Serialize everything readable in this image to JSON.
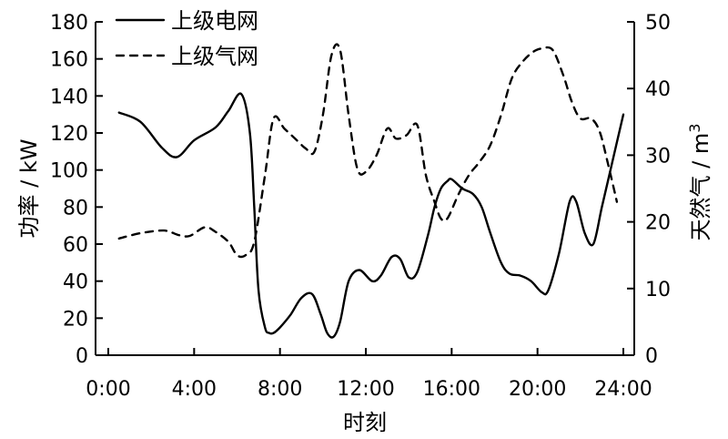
{
  "chart_data": {
    "type": "line",
    "xlabel": "时刻",
    "ylabel_left": "功率 / kW",
    "ylabel_right_main": "天然气 / m",
    "ylabel_right_sup": "3",
    "x_ticks": [
      "0:00",
      "4:00",
      "8:00",
      "12:00",
      "16:00",
      "20:00",
      "24:00"
    ],
    "x_range_hours": [
      0,
      24
    ],
    "ylim_left": [
      0,
      180
    ],
    "yticks_left": [
      "0",
      "20",
      "40",
      "60",
      "80",
      "100",
      "120",
      "140",
      "160",
      "180"
    ],
    "ylim_right": [
      0,
      50
    ],
    "yticks_right": [
      "0",
      "10",
      "20",
      "30",
      "40",
      "50"
    ],
    "grid": false,
    "legend_position": "top-left",
    "series": [
      {
        "name": "上级电网",
        "axis": "left",
        "style": "solid",
        "x": [
          0.5,
          1.5,
          2.5,
          3.2,
          4.0,
          5.0,
          5.6,
          6.2,
          6.6,
          6.8,
          7.0,
          7.3,
          7.5,
          7.7,
          8.0,
          8.5,
          9.0,
          9.5,
          9.9,
          10.2,
          10.5,
          10.8,
          11.2,
          11.7,
          12.3,
          12.7,
          13.2,
          13.6,
          14.0,
          14.4,
          14.9,
          15.2,
          15.5,
          15.8,
          16.0,
          16.5,
          17.0,
          17.4,
          17.8,
          18.3,
          18.7,
          19.2,
          19.7,
          20.2,
          20.5,
          21.0,
          21.5,
          21.8,
          22.2,
          22.6,
          23.0,
          23.5,
          24.0
        ],
        "values": [
          131,
          126,
          112,
          107,
          116,
          123,
          132,
          141,
          120,
          80,
          35,
          15,
          12,
          12,
          15,
          22,
          31,
          33,
          22,
          12,
          10,
          18,
          40,
          46,
          40,
          43,
          53,
          52,
          42,
          45,
          65,
          80,
          90,
          94,
          95,
          90,
          87,
          80,
          66,
          50,
          44,
          43,
          40,
          34,
          35,
          55,
          83,
          83,
          66,
          60,
          80,
          105,
          130
        ]
      },
      {
        "name": "上级气网",
        "axis": "right",
        "style": "dashed",
        "x": [
          0.5,
          1.5,
          2.6,
          3.3,
          3.8,
          4.5,
          5.0,
          5.6,
          6.0,
          6.4,
          6.8,
          7.3,
          7.7,
          8.2,
          8.7,
          9.2,
          9.6,
          10.0,
          10.4,
          10.8,
          11.2,
          11.6,
          12.0,
          12.5,
          13.0,
          13.4,
          13.9,
          14.4,
          14.8,
          15.2,
          15.5,
          15.8,
          16.3,
          16.8,
          17.3,
          17.8,
          18.3,
          18.8,
          19.3,
          19.8,
          20.2,
          20.7,
          21.2,
          21.6,
          22.0,
          22.5,
          22.9,
          23.3,
          23.7
        ],
        "values": [
          17.5,
          18.3,
          18.7,
          18.0,
          17.9,
          19.2,
          18.5,
          17.0,
          15.0,
          15.0,
          17.0,
          27.0,
          35.5,
          34.0,
          32.5,
          31.0,
          30.5,
          36.0,
          45.0,
          45.8,
          36.0,
          28.0,
          27.5,
          30.0,
          34.0,
          32.5,
          33.0,
          34.5,
          27.0,
          23.0,
          20.5,
          20.5,
          24.0,
          27.0,
          29.0,
          31.5,
          36.0,
          41.5,
          44.0,
          45.5,
          46.0,
          45.8,
          42.0,
          38.0,
          35.5,
          35.5,
          33.5,
          28.5,
          23.0
        ]
      }
    ]
  }
}
